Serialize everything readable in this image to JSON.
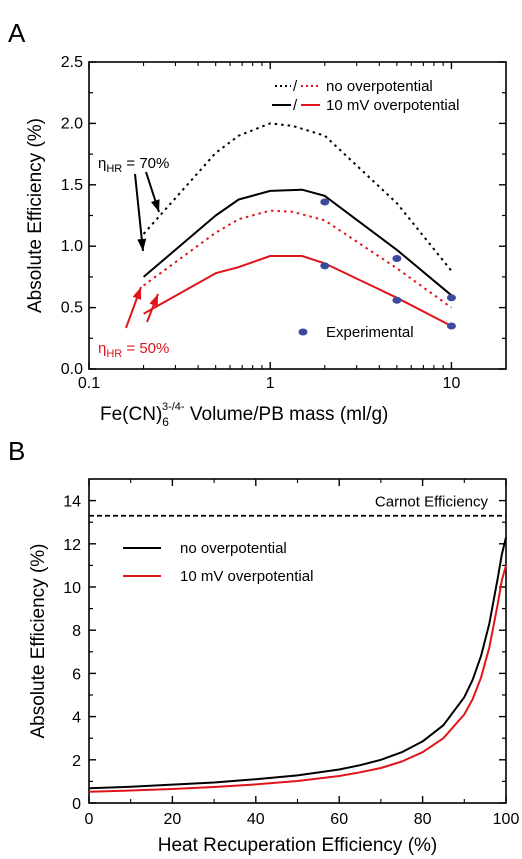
{
  "chart_data": [
    {
      "panel": "A",
      "type": "line",
      "xscale": "log",
      "xlim": [
        0.1,
        20
      ],
      "ylim": [
        0.0,
        2.5
      ],
      "xticks": [
        0.1,
        1,
        10
      ],
      "xtick_labels": [
        "0.1",
        "1",
        "10"
      ],
      "yticks": [
        0.0,
        0.5,
        1.0,
        1.5,
        2.0,
        2.5
      ],
      "ytick_labels": [
        "0.0",
        "0.5",
        "1.0",
        "1.5",
        "2.0",
        "2.5"
      ],
      "xlabel_main": "Fe(CN)",
      "xlabel_sub": "6",
      "xlabel_sup": "3-/4-",
      "xlabel_rest": " Volume/PB mass (ml/g)",
      "ylabel": "Absolute Efficiency (%)",
      "legend": [
        {
          "slash": "/",
          "label": "no overpotential"
        },
        {
          "slash": "/",
          "label": "10 mV overpotential"
        },
        {
          "label": "Experimental"
        }
      ],
      "series": [
        {
          "color": "#000000",
          "dash": true,
          "x": [
            0.2,
            0.5,
            0.67,
            1.0,
            1.33,
            2.0,
            5.0,
            10.0
          ],
          "y": [
            1.1,
            1.76,
            1.9,
            2.0,
            1.98,
            1.9,
            1.35,
            0.8
          ]
        },
        {
          "color": "#000000",
          "dash": false,
          "x": [
            0.2,
            0.5,
            0.67,
            1.0,
            1.5,
            2.0,
            5.0,
            10.0
          ],
          "y": [
            0.75,
            1.25,
            1.38,
            1.45,
            1.46,
            1.41,
            0.97,
            0.6
          ]
        },
        {
          "color": "#e0141b",
          "dash": true,
          "x": [
            0.2,
            0.5,
            0.67,
            1.0,
            1.33,
            2.0,
            5.0,
            10.0
          ],
          "y": [
            0.68,
            1.11,
            1.22,
            1.29,
            1.28,
            1.21,
            0.82,
            0.5
          ]
        },
        {
          "color": "#e0141b",
          "dash": false,
          "x": [
            0.2,
            0.5,
            0.67,
            1.0,
            1.5,
            2.0,
            5.0,
            10.0
          ],
          "y": [
            0.45,
            0.78,
            0.83,
            0.92,
            0.92,
            0.86,
            0.58,
            0.35
          ]
        }
      ],
      "experimental": {
        "color": "#3b4a9a",
        "x": [
          2.0,
          2.0,
          5.0,
          5.0,
          10.0,
          10.0
        ],
        "y": [
          1.36,
          0.84,
          0.9,
          0.56,
          0.58,
          0.35
        ]
      },
      "annotations": [
        {
          "text_main": "η",
          "text_sub": "HR",
          "text_rest": " = 70%",
          "color": "#000000"
        },
        {
          "text_main": "η",
          "text_sub": "HR",
          "text_rest": " = 50%",
          "color": "#e0141b"
        }
      ]
    },
    {
      "panel": "B",
      "type": "line",
      "xlim": [
        0,
        100
      ],
      "ylim": [
        0,
        15
      ],
      "xticks": [
        0,
        20,
        40,
        60,
        80,
        100
      ],
      "yticks": [
        0,
        2,
        4,
        6,
        8,
        10,
        12,
        14
      ],
      "xlabel": "Heat Recuperation Efficiency (%)",
      "ylabel": "Absolute Efficiency (%)",
      "carnot": {
        "label": "Carnot Efficiency",
        "value": 13.3
      },
      "legend": [
        {
          "label": "no overpotential",
          "color": "#000000"
        },
        {
          "label": "10 mV overpotential",
          "color": "#e0141b"
        }
      ],
      "series": [
        {
          "color": "#000000",
          "x": [
            0,
            10,
            20,
            30,
            40,
            50,
            60,
            65,
            70,
            75,
            80,
            85,
            90,
            92,
            94,
            96,
            98,
            99,
            100
          ],
          "y": [
            0.68,
            0.75,
            0.85,
            0.95,
            1.1,
            1.28,
            1.55,
            1.75,
            2.0,
            2.35,
            2.85,
            3.6,
            4.9,
            5.7,
            6.8,
            8.3,
            10.4,
            11.5,
            12.3
          ]
        },
        {
          "color": "#e0141b",
          "x": [
            0,
            10,
            20,
            30,
            40,
            50,
            60,
            65,
            70,
            75,
            80,
            85,
            90,
            92,
            94,
            96,
            98,
            99,
            100
          ],
          "y": [
            0.52,
            0.58,
            0.65,
            0.74,
            0.86,
            1.02,
            1.25,
            1.42,
            1.62,
            1.92,
            2.35,
            3.0,
            4.1,
            4.8,
            5.8,
            7.2,
            9.2,
            10.3,
            11.0
          ]
        }
      ]
    }
  ],
  "panels": {
    "a": "A",
    "b": "B"
  }
}
